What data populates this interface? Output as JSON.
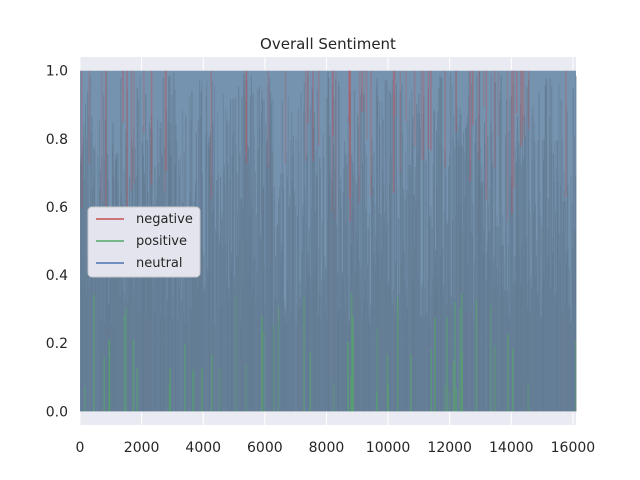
{
  "chart_data": {
    "type": "area",
    "title": "Overall Sentiment",
    "xlabel": "",
    "ylabel": "",
    "xlim": [
      0,
      16100
    ],
    "ylim": [
      -0.04,
      1.04
    ],
    "x_ticks": [
      0,
      2000,
      4000,
      6000,
      8000,
      10000,
      12000,
      14000,
      16000
    ],
    "x_tick_labels": [
      "0",
      "2000",
      "4000",
      "6000",
      "8000",
      "10000",
      "12000",
      "14000",
      "16000"
    ],
    "y_ticks": [
      0.0,
      0.2,
      0.4,
      0.6,
      0.8,
      1.0
    ],
    "y_tick_labels": [
      "0.0",
      "0.2",
      "0.4",
      "0.6",
      "0.8",
      "1.0"
    ],
    "grid": true,
    "legend_position": "center-left",
    "series": [
      {
        "name": "negative",
        "color": "#c44e52"
      },
      {
        "name": "positive",
        "color": "#55a868"
      },
      {
        "name": "neutral",
        "color": "#4c72b0"
      }
    ],
    "x_range": [
      0,
      16100
    ],
    "y_range": [
      0,
      1.0
    ],
    "sample_count_approx": 16100,
    "notes_visible": "Dense overlapping filled series spanning full 0–1 range across x"
  },
  "colors": {
    "plot_background": "#eaeaf2",
    "grid": "#ffffff",
    "dense_fill": "#6a8aa8",
    "dense_band": "#61788f"
  }
}
